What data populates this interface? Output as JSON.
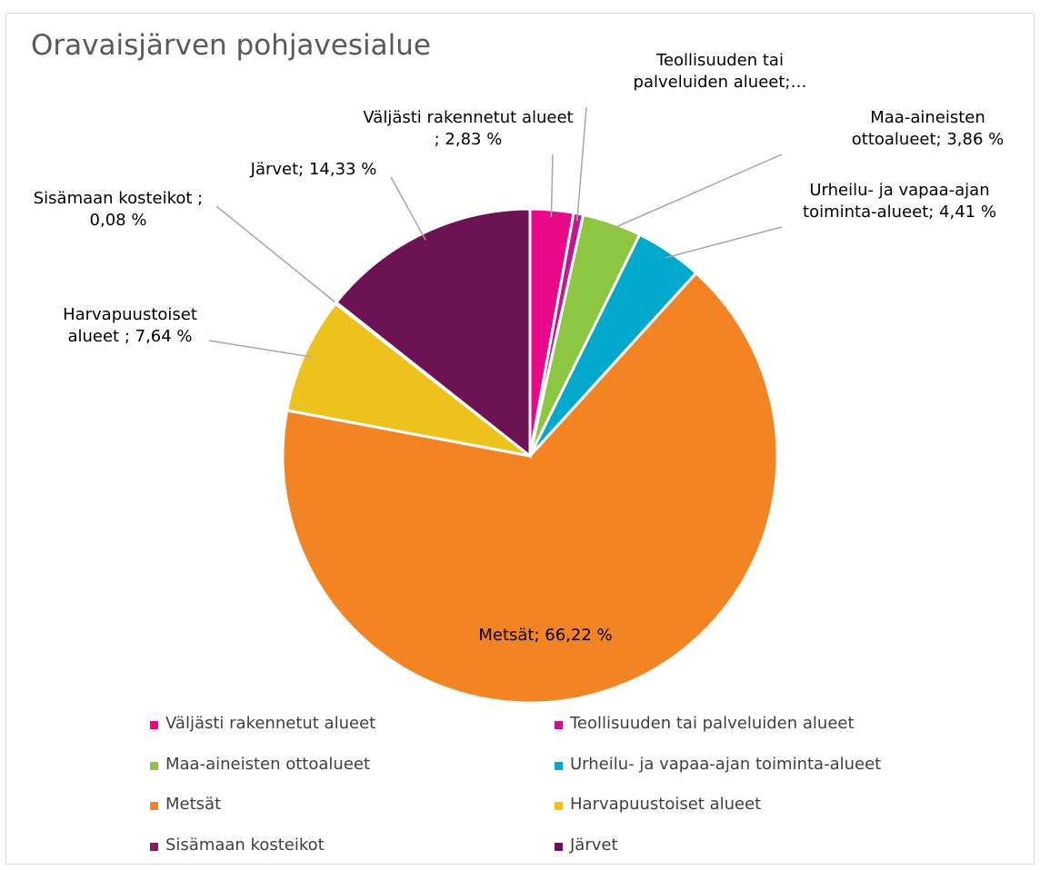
{
  "chart_data": {
    "type": "pie",
    "title": "Oravaisjärven pohjavesialue",
    "categories": [
      "Väljästi rakennetut alueet",
      "Teollisuuden tai palveluiden alueet",
      "Maa-aineisten ottoalueet",
      "Urheilu- ja vapaa-ajan toiminta-alueet",
      "Metsät",
      "Harvapuustoiset alueet",
      "Sisämaan kosteikot",
      "Järvet"
    ],
    "values": [
      2.83,
      0.63,
      3.86,
      4.41,
      66.22,
      7.64,
      0.08,
      14.33
    ],
    "value_labels": [
      "Väljästi rakennetut alueet ; 2,83 %",
      "Teollisuuden tai palveluiden alueet;…",
      "Maa-aineisten ottoalueet; 3,86 %",
      "Urheilu- ja vapaa-ajan toiminta-alueet; 4,41 %",
      "Metsät; 66,22 %",
      "Harvapuustoiset alueet ; 7,64 %",
      "Sisämaan kosteikot ; 0,08 %",
      "Järvet; 14,33 %"
    ],
    "colors": [
      "#e8088a",
      "#c2178f",
      "#8dc641",
      "#00a8cc",
      "#f28423",
      "#edc21c",
      "#8a1a5e",
      "#6d1253"
    ],
    "legend": "bottom"
  }
}
